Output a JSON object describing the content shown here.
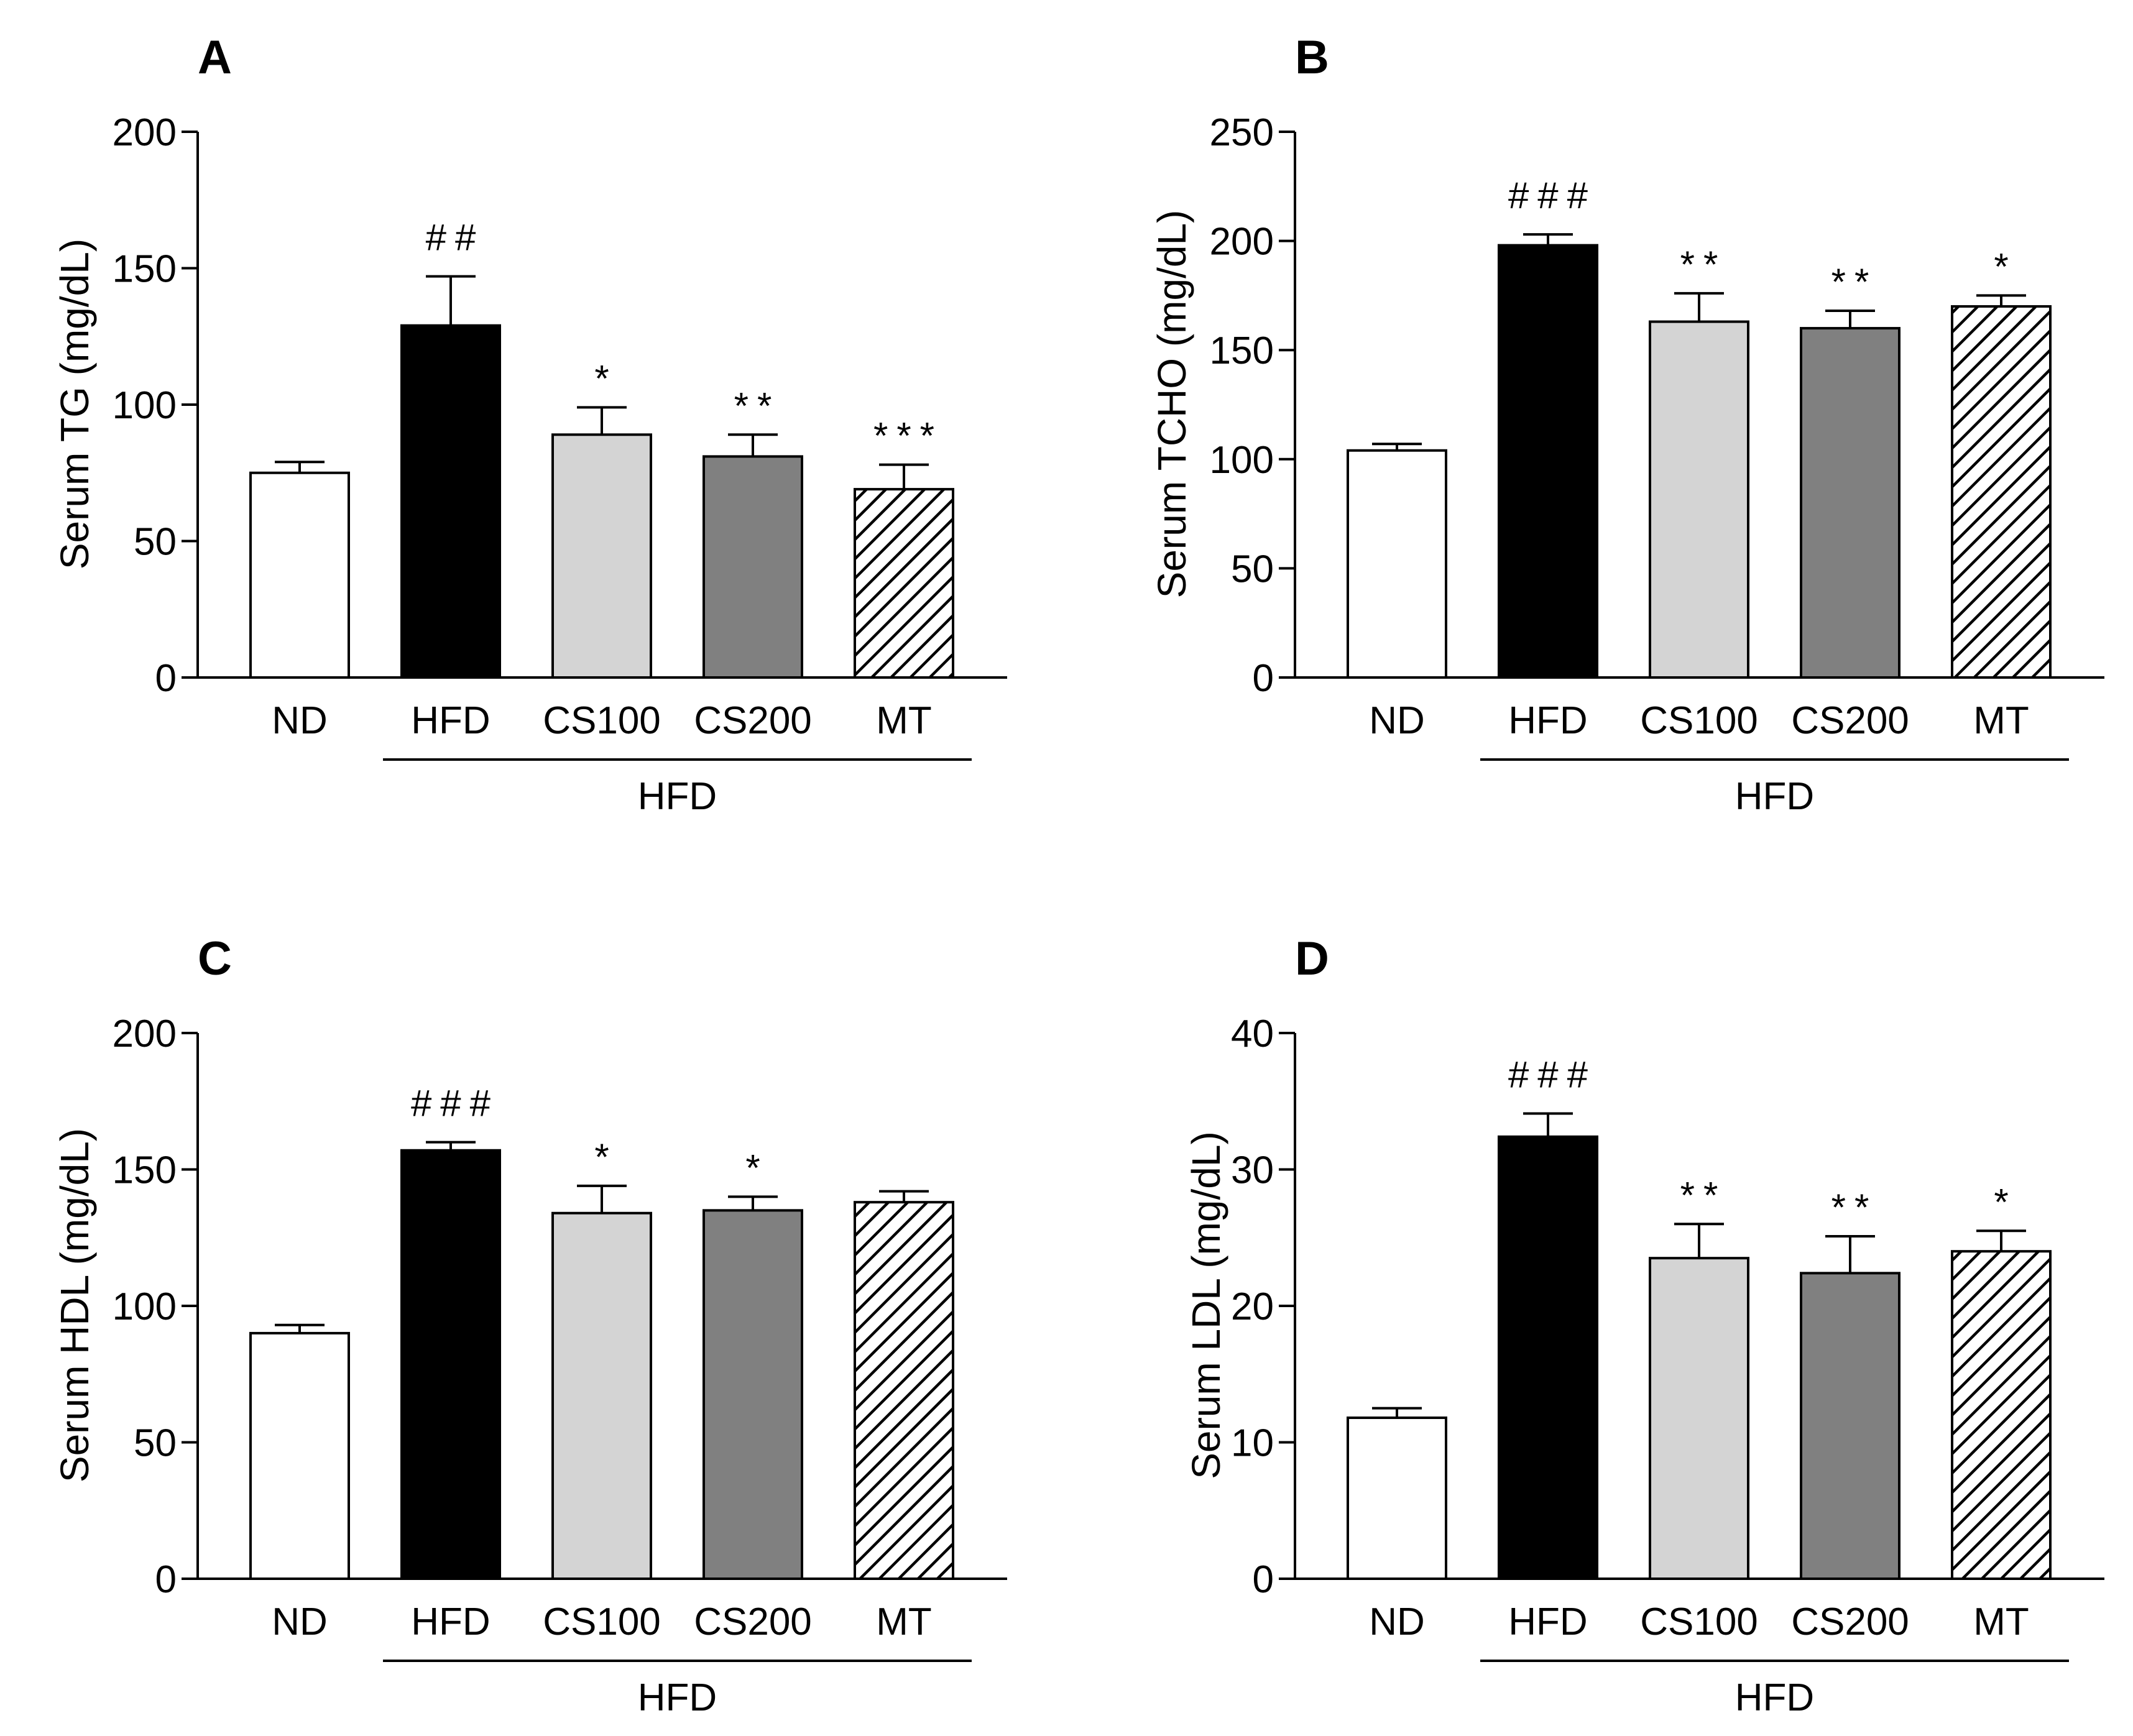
{
  "colors": {
    "axis": "#000000",
    "ND": "#ffffff",
    "HFD": "#000000",
    "CS100": "#d4d4d4",
    "CS200": "#808080",
    "MT": "hatch"
  },
  "chart_data": [
    {
      "type": "bar",
      "panel": "A",
      "title": "",
      "xlabel": "",
      "ylabel": "Serum TG (mg/dL)",
      "ylim": [
        0,
        200
      ],
      "yticks": [
        "0",
        "50",
        "100",
        "150",
        "200"
      ],
      "categories": [
        "ND",
        "HFD",
        "CS100",
        "CS200",
        "MT"
      ],
      "values": [
        75,
        129,
        89,
        81,
        69
      ],
      "errors": [
        4,
        18,
        10,
        8,
        9
      ],
      "significance": [
        "",
        "##",
        "*",
        "**",
        "***"
      ],
      "group_label": "HFD"
    },
    {
      "type": "bar",
      "panel": "B",
      "title": "",
      "xlabel": "",
      "ylabel": "Serum TCHO (mg/dL)",
      "ylim": [
        0,
        250
      ],
      "yticks": [
        "0",
        "50",
        "100",
        "150",
        "200",
        "250"
      ],
      "categories": [
        "ND",
        "HFD",
        "CS100",
        "CS200",
        "MT"
      ],
      "values": [
        104,
        198,
        163,
        160,
        170
      ],
      "errors": [
        3,
        5,
        13,
        8,
        5
      ],
      "significance": [
        "",
        "###",
        "**",
        "**",
        "*"
      ],
      "group_label": "HFD"
    },
    {
      "type": "bar",
      "panel": "C",
      "title": "",
      "xlabel": "",
      "ylabel": "Serum HDL (mg/dL)",
      "ylim": [
        0,
        200
      ],
      "yticks": [
        "0",
        "50",
        "100",
        "150",
        "200"
      ],
      "categories": [
        "ND",
        "HFD",
        "CS100",
        "CS200",
        "MT"
      ],
      "values": [
        90,
        157,
        134,
        135,
        138
      ],
      "errors": [
        3,
        3,
        10,
        5,
        4
      ],
      "significance": [
        "",
        "###",
        "*",
        "*",
        ""
      ],
      "group_label": "HFD"
    },
    {
      "type": "bar",
      "panel": "D",
      "title": "",
      "xlabel": "",
      "ylabel": "Serum LDL (mg/dL)",
      "ylim": [
        0,
        40
      ],
      "yticks": [
        "0",
        "10",
        "20",
        "30",
        "40"
      ],
      "categories": [
        "ND",
        "HFD",
        "CS100",
        "CS200",
        "MT"
      ],
      "values": [
        11.8,
        32.4,
        23.5,
        22.4,
        24.0
      ],
      "errors": [
        0.7,
        1.7,
        2.5,
        2.7,
        1.5
      ],
      "significance": [
        "",
        "###",
        "**",
        "**",
        "*"
      ],
      "group_label": "HFD"
    }
  ]
}
